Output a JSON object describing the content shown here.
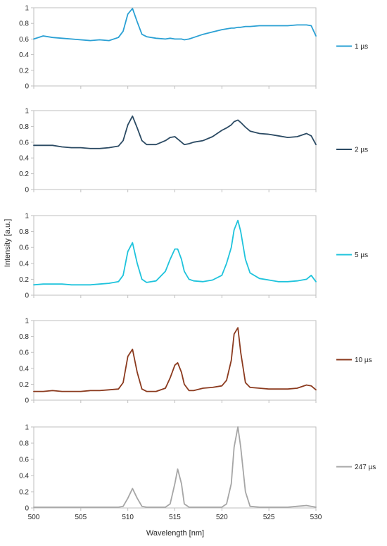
{
  "chart_data": {
    "type": "line",
    "xlabel": "Wavelength [nm]",
    "ylabel": "Intensity [a.u.]",
    "xlim": [
      500,
      530
    ],
    "x_ticks": [
      "500",
      "505",
      "510",
      "515",
      "520",
      "525",
      "530"
    ],
    "ylim": [
      0,
      1
    ],
    "y_ticks": [
      "0",
      "0.2",
      "0.4",
      "0.6",
      "0.8",
      "1"
    ],
    "x_labels_on": "bottom panel only",
    "grid": false,
    "legend_position": "right of each panel",
    "x": [
      500,
      501,
      502,
      503,
      504,
      505,
      506,
      507,
      508,
      509,
      509.5,
      510,
      510.5,
      511,
      511.5,
      512,
      513,
      514,
      514.5,
      515,
      515.3,
      515.7,
      516,
      516.5,
      517,
      518,
      519,
      520,
      520.5,
      521,
      521.3,
      521.7,
      522,
      522.5,
      523,
      524,
      525,
      526,
      527,
      528,
      529,
      529.5,
      530
    ],
    "series": [
      {
        "name": "1 µs",
        "color": "#2aa0d4",
        "values": [
          0.6,
          0.64,
          0.62,
          0.61,
          0.6,
          0.59,
          0.58,
          0.59,
          0.58,
          0.62,
          0.7,
          0.92,
          0.99,
          0.82,
          0.66,
          0.63,
          0.61,
          0.6,
          0.61,
          0.6,
          0.6,
          0.6,
          0.59,
          0.6,
          0.62,
          0.66,
          0.69,
          0.72,
          0.73,
          0.74,
          0.74,
          0.75,
          0.75,
          0.76,
          0.76,
          0.77,
          0.77,
          0.77,
          0.77,
          0.78,
          0.78,
          0.77,
          0.64
        ]
      },
      {
        "name": "2 µs",
        "color": "#2b4a63",
        "values": [
          0.56,
          0.56,
          0.56,
          0.54,
          0.53,
          0.53,
          0.52,
          0.52,
          0.53,
          0.55,
          0.62,
          0.82,
          0.93,
          0.78,
          0.62,
          0.57,
          0.57,
          0.62,
          0.66,
          0.67,
          0.64,
          0.6,
          0.57,
          0.58,
          0.6,
          0.62,
          0.67,
          0.75,
          0.78,
          0.82,
          0.86,
          0.88,
          0.85,
          0.79,
          0.74,
          0.71,
          0.7,
          0.68,
          0.66,
          0.67,
          0.71,
          0.68,
          0.57
        ]
      },
      {
        "name": "5 µs",
        "color": "#1ec3dc",
        "values": [
          0.13,
          0.14,
          0.14,
          0.14,
          0.13,
          0.13,
          0.13,
          0.14,
          0.15,
          0.17,
          0.25,
          0.55,
          0.66,
          0.4,
          0.2,
          0.16,
          0.18,
          0.3,
          0.45,
          0.58,
          0.58,
          0.45,
          0.3,
          0.2,
          0.18,
          0.17,
          0.19,
          0.25,
          0.4,
          0.6,
          0.82,
          0.94,
          0.8,
          0.45,
          0.28,
          0.21,
          0.19,
          0.17,
          0.17,
          0.18,
          0.2,
          0.25,
          0.17
        ]
      },
      {
        "name": "10 µs",
        "color": "#8b3a1e",
        "values": [
          0.11,
          0.11,
          0.12,
          0.11,
          0.11,
          0.11,
          0.12,
          0.12,
          0.13,
          0.14,
          0.22,
          0.55,
          0.64,
          0.35,
          0.14,
          0.11,
          0.11,
          0.15,
          0.28,
          0.44,
          0.47,
          0.35,
          0.2,
          0.12,
          0.12,
          0.15,
          0.16,
          0.18,
          0.25,
          0.5,
          0.83,
          0.91,
          0.6,
          0.22,
          0.16,
          0.15,
          0.14,
          0.14,
          0.14,
          0.15,
          0.19,
          0.18,
          0.13
        ]
      },
      {
        "name": "247 µs",
        "color": "#a6a6a6",
        "values": [
          0.01,
          0.01,
          0.01,
          0.01,
          0.01,
          0.01,
          0.01,
          0.01,
          0.01,
          0.01,
          0.02,
          0.12,
          0.24,
          0.12,
          0.02,
          0.01,
          0.01,
          0.01,
          0.05,
          0.3,
          0.48,
          0.3,
          0.05,
          0.01,
          0.01,
          0.01,
          0.01,
          0.01,
          0.05,
          0.3,
          0.75,
          1.0,
          0.75,
          0.2,
          0.02,
          0.01,
          0.01,
          0.01,
          0.01,
          0.02,
          0.03,
          0.02,
          0.01
        ]
      }
    ]
  }
}
